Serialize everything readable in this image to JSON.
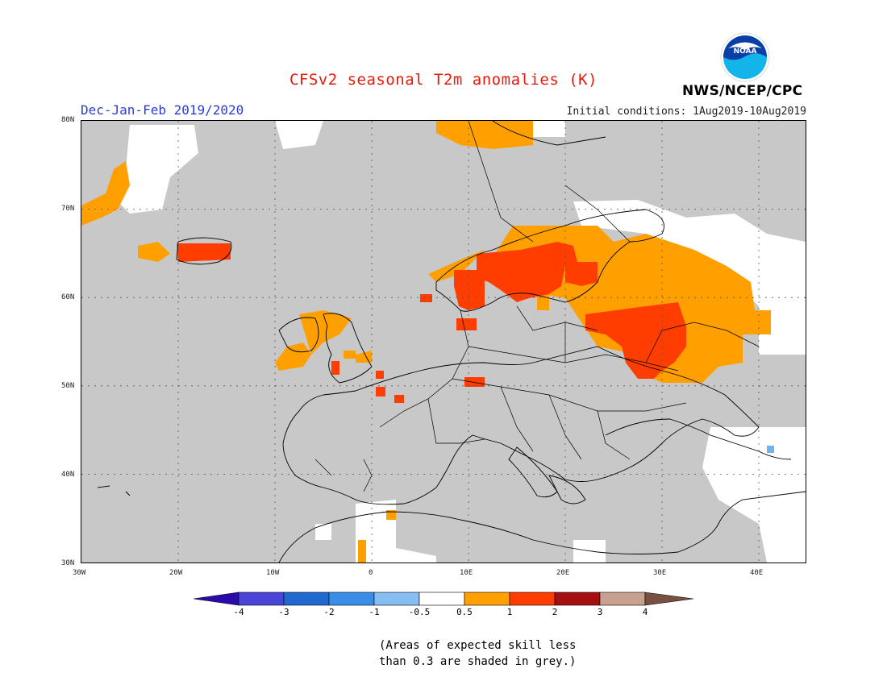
{
  "header": {
    "title": "CFSv2 seasonal T2m anomalies (K)",
    "period": "Dec-Jan-Feb 2019/2020",
    "initial_conditions": "Initial conditions: 1Aug2019-10Aug2019",
    "agency": "NWS/NCEP/CPC",
    "logo_text": "NOAA"
  },
  "map": {
    "projection": "lat-lon",
    "lon_range": [
      -30,
      45
    ],
    "lat_range": [
      30,
      80
    ],
    "lat_ticks": [
      "80N",
      "70N",
      "60N",
      "50N",
      "40N",
      "30N"
    ],
    "lon_ticks": [
      "30W",
      "20W",
      "10W",
      "0",
      "10E",
      "20E",
      "30E",
      "40E"
    ],
    "grid": "dotted",
    "background_grey": "#c8c8c8",
    "shading_regions": [
      {
        "name": "warm-0.5-1",
        "color": "#ff9f00"
      },
      {
        "name": "warm-1-2",
        "color": "#ff3d00"
      },
      {
        "name": "near-zero",
        "color": "#ffffff"
      },
      {
        "name": "cool-1-0.5",
        "color": "#6fb4f0"
      }
    ]
  },
  "colorbar": {
    "labels": [
      "-4",
      "-3",
      "-2",
      "-1",
      "-0.5",
      "0.5",
      "1",
      "2",
      "3",
      "4"
    ],
    "colors": [
      "#2a0aa8",
      "#4a44d8",
      "#2169cf",
      "#3b8ee8",
      "#86bdf2",
      "#ffffff",
      "#ff9f00",
      "#ff3d00",
      "#a50f0f",
      "#c8a090",
      "#7a5040"
    ]
  },
  "footnote": {
    "line1": "(Areas of expected skill less",
    "line2": "than 0.3 are shaded in grey.)"
  }
}
